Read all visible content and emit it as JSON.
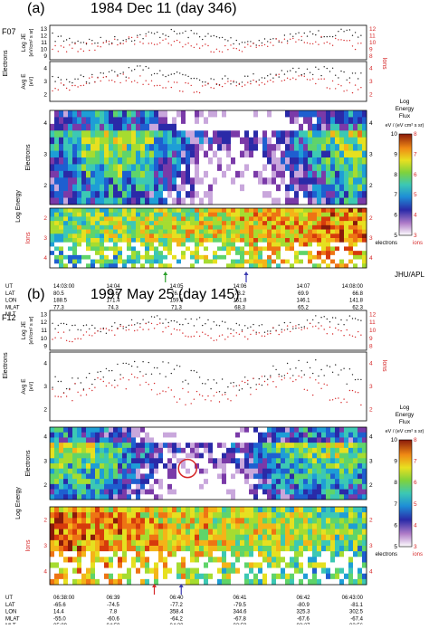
{
  "chart_data": [
    {
      "type": "heatmap",
      "panel_label": "(a)",
      "title": "1984 Dec 11 (day 346)",
      "satellite": "F07",
      "credit": "JHU/APL",
      "x_rows": {
        "labels": [
          "UT",
          "LAT",
          "LON",
          "MLAT",
          "MLT"
        ],
        "columns": [
          [
            "14:03:00",
            "80.5",
            "188.5",
            "77.3",
            "00:35"
          ],
          [
            "14:04",
            "78.6",
            "171.4",
            "74.3",
            "00:17"
          ],
          [
            "14:05",
            "76.1",
            "159.8",
            "71.3",
            "00:05"
          ],
          [
            "14:06",
            "73.2",
            "151.8",
            "68.3",
            "23:56"
          ],
          [
            "14:07",
            "69.9",
            "146.1",
            "65.2",
            "23:49"
          ],
          [
            "14:08:00",
            "66.8",
            "141.8",
            "62.3",
            "23:43"
          ]
        ]
      },
      "side_labels": {
        "electrons": "Electrons",
        "log_energy": "Log Energy",
        "ions": "Ions"
      },
      "line_panels": [
        {
          "ylabel": "Log JE",
          "units": "[eV/cm² s sr]",
          "left_ticks": [
            "9",
            "10",
            "11",
            "12",
            "13"
          ],
          "right_ticks": [
            "8",
            "9",
            "10",
            "11",
            "12"
          ]
        },
        {
          "ylabel": "Avg E",
          "units": "[eV]",
          "left_ticks": [
            "2",
            "3",
            "4"
          ],
          "right_ticks": [
            "2",
            "3",
            "4"
          ]
        }
      ],
      "spectrogram_ticks": {
        "electrons": [
          "2",
          "3",
          "4"
        ],
        "ions": [
          "2",
          "3",
          "4"
        ]
      },
      "arrows": [
        {
          "color": "#2ca02c",
          "x_fraction": 0.365
        },
        {
          "color": "#3a3ab0",
          "x_fraction": 0.62
        }
      ],
      "colorbar": {
        "title": [
          "Log",
          "Energy",
          "Flux"
        ],
        "units": "eV / (eV cm² s sr)",
        "left_label": "electrons",
        "right_label": "ions",
        "left_ticks": [
          "5",
          "6",
          "7",
          "8",
          "9",
          "10"
        ],
        "right_ticks": [
          "3",
          "4",
          "5",
          "6",
          "7",
          "8"
        ]
      }
    },
    {
      "type": "heatmap",
      "panel_label": "(b)",
      "title": "1997 May 25 (day 145)",
      "satellite": "F12",
      "x_rows": {
        "labels": [
          "UT",
          "LAT",
          "LON",
          "MLAT",
          "MLT"
        ],
        "columns": [
          [
            "06:38:00",
            "-65.6",
            "14.4",
            "-55.0",
            "05:09"
          ],
          [
            "06:39",
            "-74.5",
            "7.8",
            "-60.6",
            "04:59"
          ],
          [
            "06:40",
            "-77.2",
            "358.4",
            "-64.2",
            "04:30"
          ],
          [
            "06:41",
            "-79.5",
            "344.6",
            "-67.8",
            "03:59"
          ],
          [
            "06:42",
            "-80.9",
            "325.3",
            "-67.6",
            "03:27"
          ],
          [
            "06:43:00",
            "-81.1",
            "302.5",
            "-67.4",
            "02:56"
          ]
        ]
      },
      "side_labels": {
        "electrons": "Electrons",
        "log_energy": "Log Energy",
        "ions": "Ions"
      },
      "line_panels": [
        {
          "ylabel": "Log JE",
          "units": "[eV/cm² s sr]",
          "left_ticks": [
            "9",
            "10",
            "11",
            "12",
            "13"
          ],
          "right_ticks": [
            "8",
            "9",
            "10",
            "11",
            "12"
          ]
        },
        {
          "ylabel": "Avg E",
          "units": "[eV]",
          "left_ticks": [
            "2",
            "3",
            "4"
          ],
          "right_ticks": [
            "2",
            "3",
            "4"
          ]
        }
      ],
      "spectrogram_ticks": {
        "electrons": [
          "2",
          "3",
          "4"
        ],
        "ions": [
          "2",
          "3",
          "4"
        ]
      },
      "arrows": [
        {
          "color": "#d62728",
          "x_fraction": 0.33
        },
        {
          "color": "#3a3ab0",
          "x_fraction": 0.415
        }
      ],
      "circle": {
        "x_fraction": 0.435,
        "y_fraction": 0.57
      },
      "colorbar": {
        "title": [
          "Log",
          "Energy",
          "Flux"
        ],
        "units": "eV / (eV cm² s sr)",
        "left_label": "electrons",
        "right_label": "ions",
        "left_ticks": [
          "5",
          "6",
          "7",
          "8",
          "9",
          "10"
        ],
        "right_ticks": [
          "3",
          "4",
          "5",
          "6",
          "7",
          "8"
        ]
      }
    }
  ]
}
